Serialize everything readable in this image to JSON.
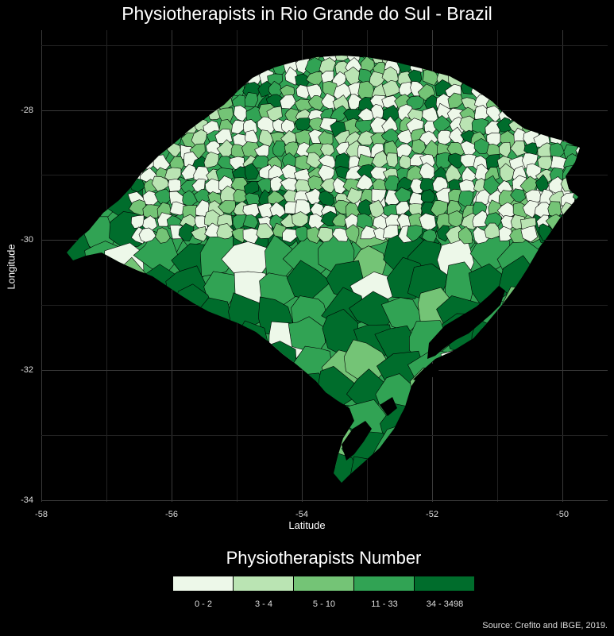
{
  "map": {
    "title": "Physiotherapists in Rio Grande do Sul - Brazil",
    "xlabel": "Latitude",
    "ylabel": "Longitude",
    "x_ticks": [
      "-58",
      "-56",
      "-54",
      "-52",
      "-50"
    ],
    "y_ticks": [
      "-28",
      "-30",
      "-32",
      "-34"
    ],
    "caption": "Source: Crefito and IBGE, 2019."
  },
  "legend": {
    "title": "Physiotherapists Number",
    "classes": [
      {
        "label": "0 - 2",
        "color": "#edf8e9"
      },
      {
        "label": "3 - 4",
        "color": "#bae4b3"
      },
      {
        "label": "5 - 10",
        "color": "#74c476"
      },
      {
        "label": "11 - 33",
        "color": "#31a354"
      },
      {
        "label": "34 - 3498",
        "color": "#006d2c"
      }
    ]
  }
}
